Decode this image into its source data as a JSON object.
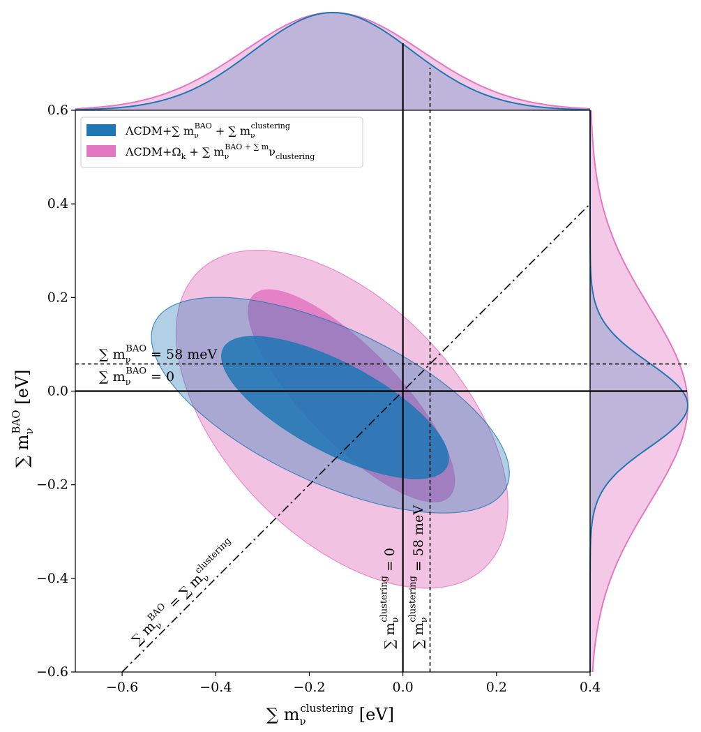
{
  "chart_data": {
    "type": "contour",
    "xlabel": {
      "main": "∑ m",
      "sub": "ν",
      "sup": "clustering",
      "unit": " [eV]"
    },
    "ylabel": {
      "main": "∑ m",
      "sub": "ν",
      "sup": "BAO",
      "unit": " [eV]"
    },
    "xlim": [
      -0.7,
      0.4
    ],
    "ylim": [
      -0.6,
      0.6
    ],
    "xticks": [
      {
        "value": -0.6,
        "label": "−0.6"
      },
      {
        "value": -0.4,
        "label": "−0.4"
      },
      {
        "value": -0.2,
        "label": "−0.2"
      },
      {
        "value": 0.0,
        "label": "0.0"
      },
      {
        "value": 0.2,
        "label": "0.2"
      },
      {
        "value": 0.4,
        "label": "0.4"
      }
    ],
    "yticks": [
      {
        "value": -0.6,
        "label": "−0.6"
      },
      {
        "value": -0.4,
        "label": "−0.4"
      },
      {
        "value": -0.2,
        "label": "−0.2"
      },
      {
        "value": 0.0,
        "label": "0.0"
      },
      {
        "value": 0.2,
        "label": "0.2"
      },
      {
        "value": 0.4,
        "label": "0.4"
      },
      {
        "value": 0.6,
        "label": "0.6"
      }
    ],
    "legend": {
      "placement": "top-left",
      "entries": [
        {
          "color": "#1f77b4",
          "parts": [
            "ΛCDM+∑ m",
            "ν",
            "BAO",
            " + ∑ m",
            "ν",
            "clustering"
          ]
        },
        {
          "color": "#e377c2",
          "parts": [
            "ΛCDM+Ω",
            "k",
            "",
            " + ∑ m",
            "ν",
            "BAO + ∑ m",
            "ν",
            "clustering"
          ]
        }
      ]
    },
    "series": [
      {
        "name": "ΛCDM+Ωk+Σmν^BAO+Σmν^clustering",
        "color": "#e377c2",
        "contours": [
          {
            "level": "95%",
            "opacity": 0.45,
            "center": [
              -0.13,
              -0.06
            ],
            "semi_axes": [
              0.44,
              0.25
            ],
            "angle_deg": -46
          },
          {
            "level": "68%",
            "opacity": 0.85,
            "center": [
              -0.11,
              -0.01
            ],
            "semi_axes": [
              0.3,
              0.1
            ],
            "angle_deg": -46
          }
        ],
        "marginal_x": {
          "mean": -0.15,
          "sigma": 0.19
        },
        "marginal_y": {
          "mean": -0.03,
          "sigma": 0.21
        }
      },
      {
        "name": "ΛCDM+Σmν^BAO+Σmν^clustering",
        "color": "#1f77b4",
        "contours": [
          {
            "level": "95%",
            "opacity": 0.35,
            "center": [
              -0.155,
              -0.03
            ],
            "semi_axes": [
              0.415,
              0.165
            ],
            "angle_deg": -25
          },
          {
            "level": "68%",
            "opacity": 0.85,
            "center": [
              -0.145,
              -0.035
            ],
            "semi_axes": [
              0.27,
              0.095
            ],
            "angle_deg": -28
          }
        ],
        "marginal_x": {
          "mean": -0.15,
          "sigma": 0.17
        },
        "marginal_y": {
          "mean": -0.03,
          "sigma": 0.09
        }
      }
    ],
    "reference_lines": [
      {
        "orientation": "horizontal",
        "value": 0.0,
        "style": "solid",
        "parts": [
          "∑ m",
          "ν",
          "BAO",
          " = 0"
        ]
      },
      {
        "orientation": "horizontal",
        "value": 0.058,
        "style": "dashed",
        "parts": [
          "∑ m",
          "ν",
          "BAO",
          " = 58 meV"
        ]
      },
      {
        "orientation": "vertical",
        "value": 0.0,
        "style": "solid",
        "parts": [
          "∑ m",
          "ν",
          "clustering",
          " = 0"
        ]
      },
      {
        "orientation": "vertical",
        "value": 0.058,
        "style": "dashed",
        "parts": [
          "∑ m",
          "ν",
          "clustering",
          " = 58 meV"
        ]
      },
      {
        "orientation": "diagonal",
        "slope": 1,
        "style": "dashdot",
        "parts": [
          "∑ m",
          "ν",
          "BAO",
          " = ∑ m",
          "ν",
          "clustering"
        ]
      }
    ]
  }
}
